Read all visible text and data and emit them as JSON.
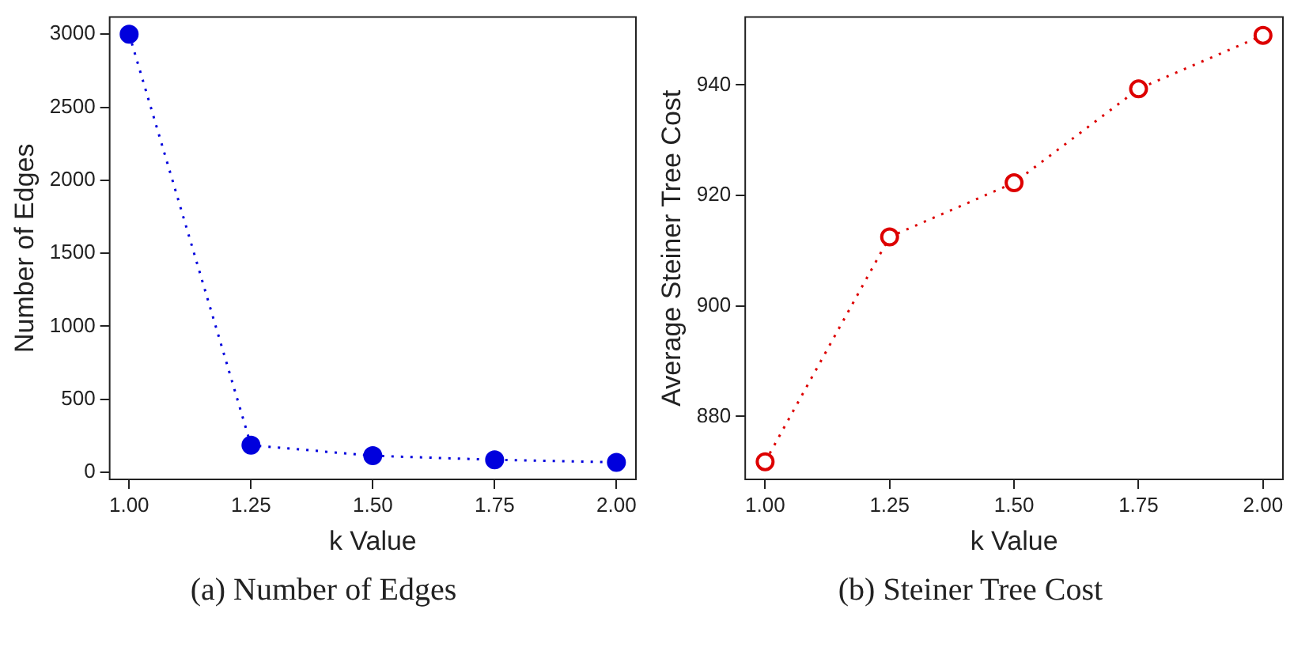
{
  "chart_data": [
    {
      "type": "line",
      "title": "(a) Number of Edges",
      "xlabel": "k Value",
      "ylabel": "Number of Edges",
      "x": [
        1.0,
        1.25,
        1.5,
        1.75,
        2.0
      ],
      "series": [
        {
          "color": "#0000dd",
          "values": [
            3000,
            186,
            114,
            86,
            69
          ]
        }
      ],
      "xlim": [
        0.96,
        2.04
      ],
      "xticks": [
        {
          "value": 1,
          "label": "1.00"
        },
        {
          "value": 1.25,
          "label": "1.25"
        },
        {
          "value": 1.5,
          "label": "1.50"
        },
        {
          "value": 1.75,
          "label": "1.75"
        },
        {
          "value": 2,
          "label": "2.00"
        }
      ],
      "ylim": [
        -48,
        3117
      ],
      "yticks": [
        0,
        500,
        1000,
        1500,
        2000,
        2500,
        3000
      ],
      "grid": false,
      "legend": false,
      "marker": "circle",
      "line_style": "dotted"
    },
    {
      "type": "line",
      "title": "(b) Steiner Tree Cost",
      "xlabel": "k Value",
      "ylabel": "Average Steiner Tree Cost",
      "x": [
        1.0,
        1.25,
        1.5,
        1.75,
        2.0
      ],
      "series": [
        {
          "color": "#dd0000",
          "values": [
            871.8,
            912.5,
            922.3,
            939.3,
            949.0
          ]
        }
      ],
      "xlim": [
        0.96,
        2.04
      ],
      "xticks": [
        {
          "value": 1,
          "label": "1.00"
        },
        {
          "value": 1.25,
          "label": "1.25"
        },
        {
          "value": 1.5,
          "label": "1.50"
        },
        {
          "value": 1.75,
          "label": "1.75"
        },
        {
          "value": 2,
          "label": "2.00"
        }
      ],
      "ylim": [
        868.6,
        952.3
      ],
      "yticks": [
        880,
        900,
        920,
        940
      ],
      "grid": false,
      "legend": false,
      "marker": "circle",
      "line_style": "dotted"
    }
  ]
}
